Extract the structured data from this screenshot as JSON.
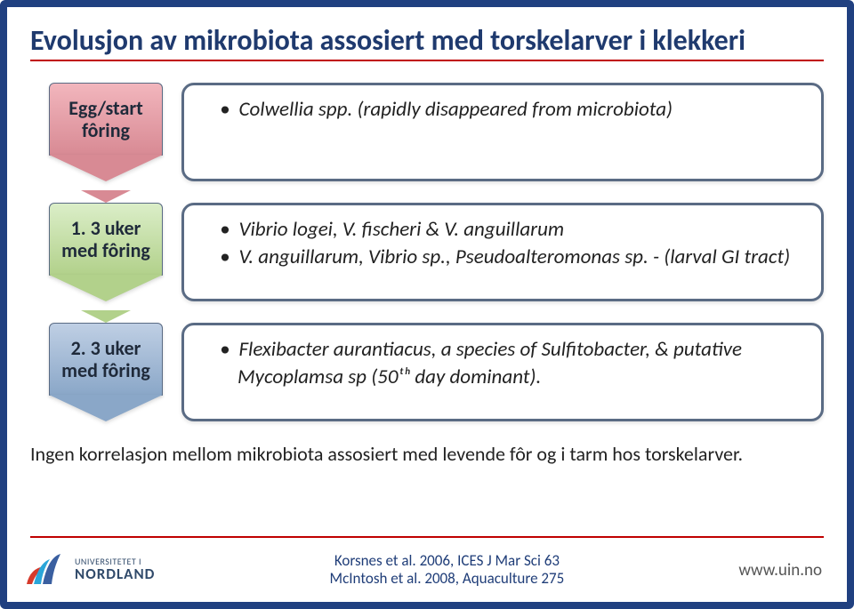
{
  "slide": {
    "border_color": "#204080",
    "title": "Evolusjon av mikrobiota assosiert med torskelarver i klekkeri",
    "title_color": "#1f3a6e",
    "underline_color": "#c00000"
  },
  "stages": [
    {
      "arrow": {
        "line1": "Egg/start",
        "line2": "fôring",
        "bg_top": "#f2b6bd",
        "bg_bottom": "#d88a94",
        "tip_color": "#d88a94",
        "chevron_color": "#f2b6bd",
        "border_color": "#5a6b84"
      },
      "card_items": [
        "Colwellia spp. (rapidly disappeared from microbiota)"
      ]
    },
    {
      "arrow": {
        "line1": "1. 3 uker",
        "line2": "med fôring",
        "bg_top": "#dbeec8",
        "bg_bottom": "#b2d18b",
        "tip_color": "#b2d18b",
        "chevron_color": "#dbeec8",
        "border_color": "#5a6b84"
      },
      "card_items": [
        "Vibrio logei, V. fischeri & V. anguillarum",
        "V. anguillarum, Vibrio sp., Pseudoalteromonas sp. - (larval GI tract)"
      ]
    },
    {
      "arrow": {
        "line1": "2. 3 uker",
        "line2": "med fôring",
        "bg_top": "#bfcfe4",
        "bg_bottom": "#8aa7c8",
        "tip_color": "#8aa7c8",
        "chevron_color": "#bfcfe4",
        "border_color": "#5a6b84"
      },
      "card_items": [
        "Flexibacter aurantiacus, a species of Sulfitobacter, & putative Mycoplamsa sp (50ᵗʰ day dominant)."
      ]
    }
  ],
  "card_border_color": "#5a6b84",
  "footnote": "Ingen korrelasjon mellom mikrobiota assosiert med levende fôr og i tarm hos torskelarver.",
  "refs": {
    "line1": "Korsnes et al. 2006, ICES  J Mar Sci 63",
    "line2": "McIntosh et al. 2008, Aquaculture 275"
  },
  "logo": {
    "line1": "UNIVERSITETET I",
    "line2": "NORDLAND",
    "colors": [
      "#d63a2b",
      "#2aa6d9",
      "#3a5fa0"
    ]
  },
  "url": "www.uin.no"
}
